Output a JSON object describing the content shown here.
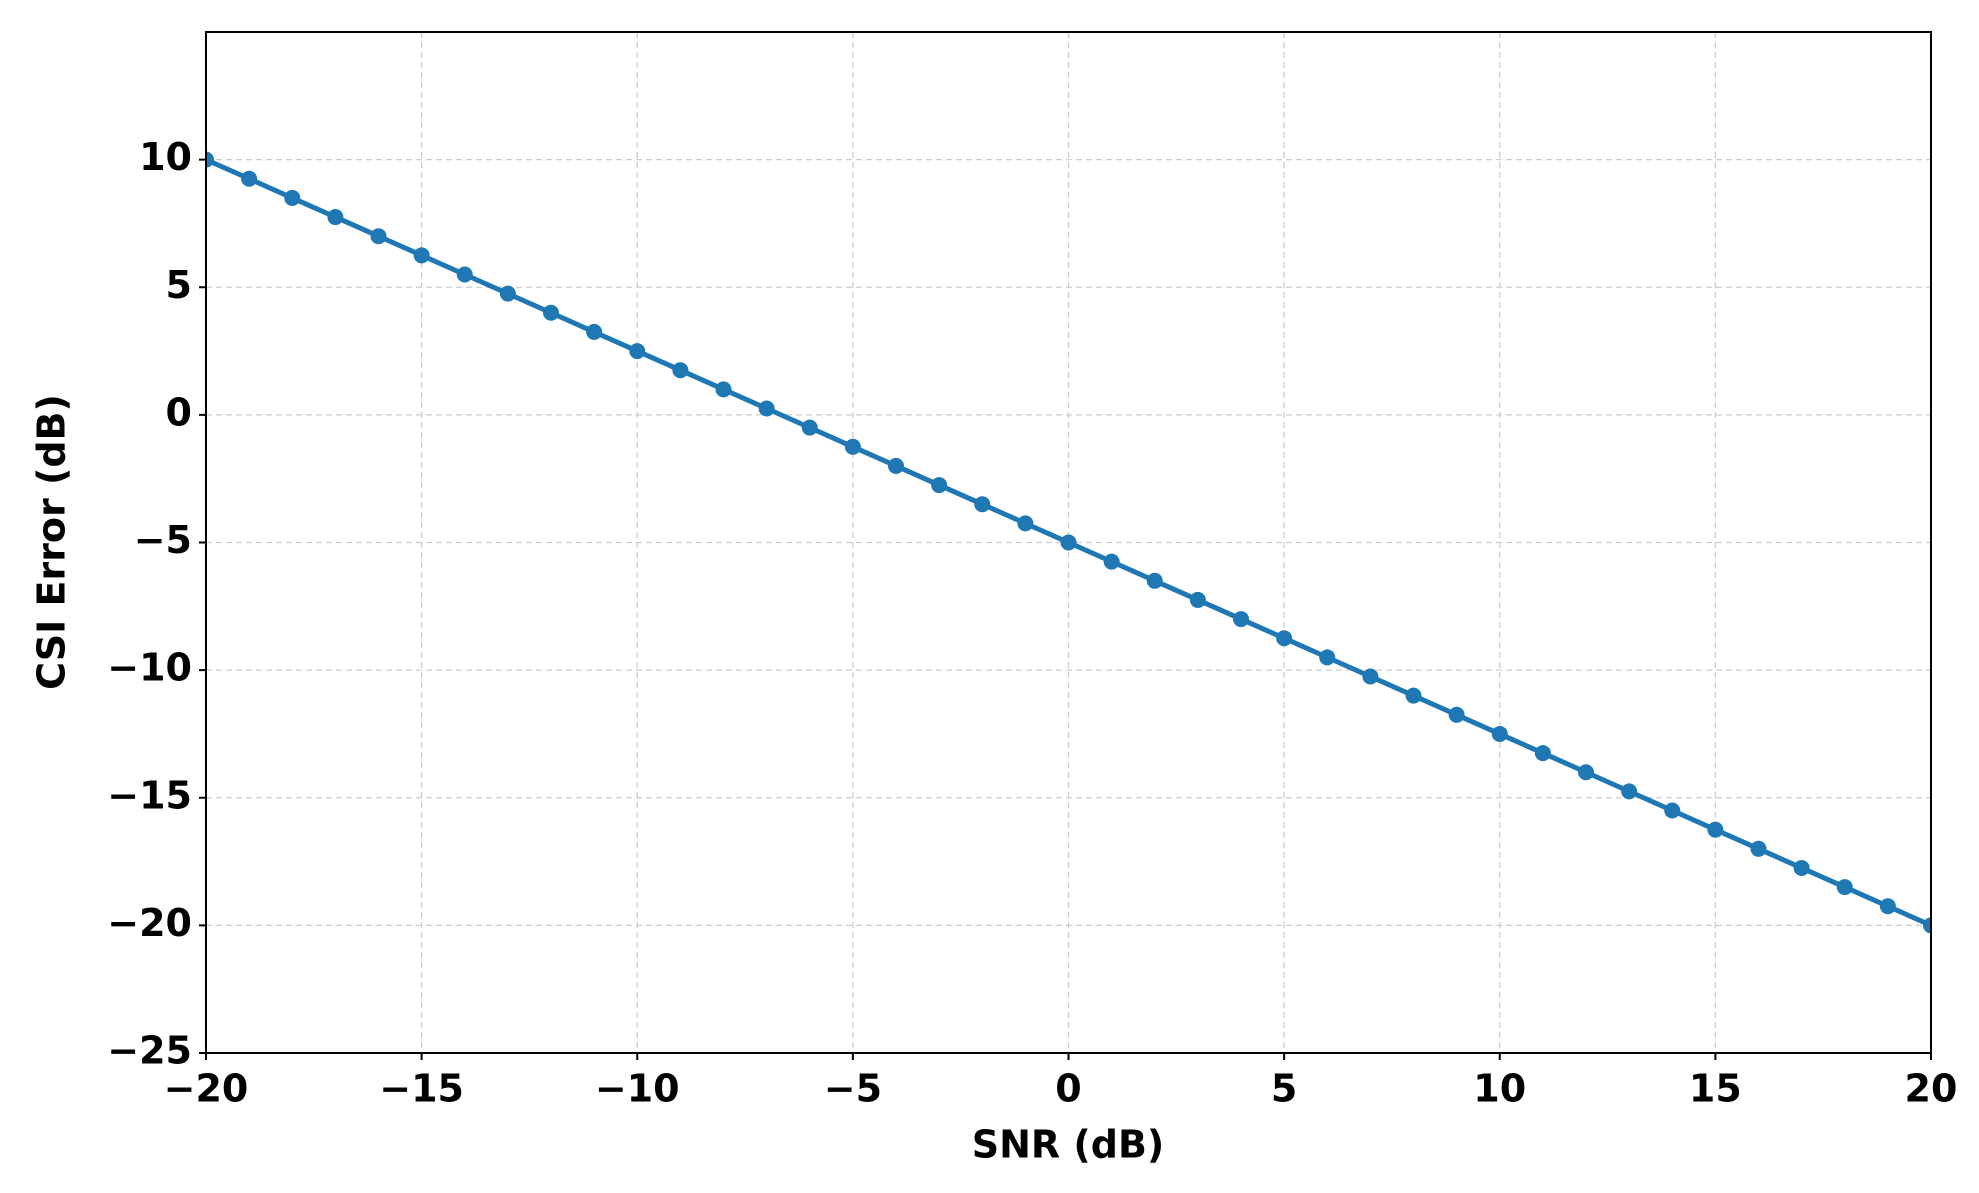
{
  "chart_data": {
    "type": "line",
    "xlabel": "SNR (dB)",
    "ylabel": "CSI Error (dB)",
    "x": [
      -20,
      -19,
      -18,
      -17,
      -16,
      -15,
      -14,
      -13,
      -12,
      -11,
      -10,
      -9,
      -8,
      -7,
      -6,
      -5,
      -4,
      -3,
      -2,
      -1,
      0,
      1,
      2,
      3,
      4,
      5,
      6,
      7,
      8,
      9,
      10,
      11,
      12,
      13,
      14,
      15,
      16,
      17,
      18,
      19,
      20
    ],
    "values": [
      10,
      9.25,
      8.5,
      7.75,
      7,
      6.25,
      5.5,
      4.75,
      4,
      3.25,
      2.5,
      1.75,
      1,
      0.25,
      -0.5,
      -1.25,
      -2,
      -2.75,
      -3.5,
      -4.25,
      -5,
      -5.75,
      -6.5,
      -7.25,
      -8,
      -8.75,
      -9.5,
      -10.25,
      -11,
      -11.75,
      -12.5,
      -13.25,
      -14,
      -14.75,
      -15.5,
      -16.25,
      -17,
      -17.75,
      -18.5,
      -19.25,
      -20
    ],
    "color": "#1f77b4",
    "xlim": [
      -20,
      20
    ],
    "ylim": [
      -25,
      15
    ],
    "xticks": [
      {
        "value": -20,
        "label": "−20"
      },
      {
        "value": -15,
        "label": "−15"
      },
      {
        "value": -10,
        "label": "−10"
      },
      {
        "value": -5,
        "label": "−5"
      },
      0,
      5,
      10,
      15,
      20
    ],
    "yticks": [
      {
        "value": -25,
        "label": "−25"
      },
      {
        "value": -20,
        "label": "−20"
      },
      {
        "value": -15,
        "label": "−15"
      },
      {
        "value": -10,
        "label": "−10"
      },
      {
        "value": -5,
        "label": "−5"
      },
      0,
      5,
      10
    ],
    "grid": true
  }
}
